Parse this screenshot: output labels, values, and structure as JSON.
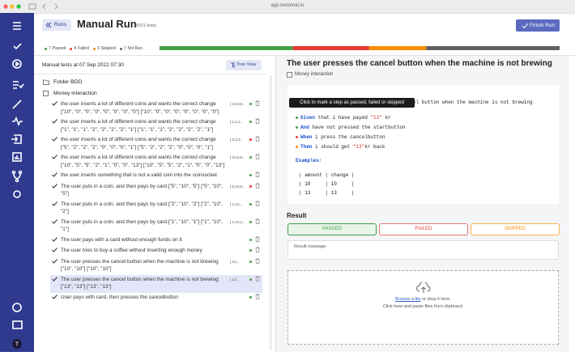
{
  "browser": {
    "url": "app.testomat.io"
  },
  "header": {
    "back_button": "Runs",
    "title": "Manual Run",
    "subtitle": "20/21 tests",
    "finish_button": "Finish Run"
  },
  "stats": [
    {
      "count": 7,
      "label": "Passed",
      "color": "#43a047"
    },
    {
      "count": 4,
      "label": "Failed",
      "color": "#e53935"
    },
    {
      "count": 3,
      "label": "Skipped",
      "color": "#fb8c00"
    },
    {
      "count": 7,
      "label": "Not Run",
      "color": "#616161"
    }
  ],
  "left_panel": {
    "heading": "Manual tests at 07 Sep 2022 07:30",
    "tree_view_button": "Tree View",
    "folder": "Folder BDD",
    "suite": "Money interaction",
    "tests": [
      {
        "title": "the user inserts a lot of different coins and wants the correct change [\"10\", \"0\", \"0\", \"0\", \"0\", \"0\", \"0\", \"0\"] [\"10\", \"0\", \"0\", \"0\", \"0\", \"0\", \"0\", \"0\"]",
        "example": "[ 10,0,0..",
        "status": "#43a047"
      },
      {
        "title": "the user inserts a lot of different coins and wants the correct change [\"1\", \"1\", \"1\", \"2\", \"2\", \"2\", \"2\", \"1\"] [\"1\", \"1\", \"1\", \"2\", \"2\", \"2\", \"2\", \"1\"]",
        "example": "[ 1,1,1..",
        "status": "#43a047"
      },
      {
        "title": "the user inserts a lot of different coins and wants the correct change [\"5\", \"2\", \"2\", \"2\", \"0\", \"0\", \"0\", \"1\"] [\"5\", \"2\", \"2\", \"2\", \"0\", \"0\", \"0\", \"1\"]",
        "example": "[ 5,2,2..",
        "status": "#e53935"
      },
      {
        "title": "the user inserts a lot of different coins and wants the correct change [\"10\", \"5\", \"5\", \"2\", \"1\", \"0\", \"0\", \"13\"] [\"10\", \"5\", \"5\", \"2\", \"1\", \"0\", \"0\", \"13\"]",
        "example": "[ 10,5,5..",
        "status": "#43a047"
      },
      {
        "title": "the user inserts something that is not a valid coin into the coinsocket",
        "status": "#43a047"
      },
      {
        "title": "The user puts in a coin, and then pays by card [\"5\", \"10\", \"5\"] [\"5\", \"10\", \"5\"]",
        "example": "[ 5,10,5..",
        "status": "#e53935"
      },
      {
        "title": "The user puts in a coin, and then pays by card [\"2\", \"10\", \"2\"] [\"2\", \"10\", \"2\"]",
        "example": "[ 2,10,..",
        "status": "#43a047"
      },
      {
        "title": "The user puts in a coin, and then pays by card [\"1\", \"10\", \"1\"] [\"1\", \"10\", \"1\"]",
        "example": "[ 1,10,1..",
        "status": "#43a047"
      },
      {
        "title": "The user pays with a card without enough funds on it",
        "status": "#43a047"
      },
      {
        "title": "The user tries to buy a coffee without inserting enough money",
        "status": "#43a047"
      },
      {
        "title": "The user presses the cancel button when the machine is not brewing [\"10\", \"10\"] [\"10\", \"10\"]",
        "example": "[ 10,..",
        "status": "#43a047"
      },
      {
        "title": "The user presses the cancel button when the machine is not brewing [\"13\", \"13\"] [\"13\", \"13\"]",
        "example": "[ 13,..",
        "status": "#43a047",
        "selected": true
      },
      {
        "title": "User pays with card, then presses the cancelbutton",
        "status": "#43a047"
      }
    ]
  },
  "detail": {
    "title": "The user presses the cancel button when the machine is not brewing",
    "tag": "Money interaction",
    "tooltip": "Click to mark a step as passed, failed or skipped",
    "scenario_visible": "el button when the machine is not brewing",
    "steps": [
      {
        "keyword": "Given",
        "parts": [
          " that i have payed ",
          "\"13\"",
          " kr"
        ],
        "color": "#43a047"
      },
      {
        "keyword": "And",
        "parts": [
          " have not pressed the startbutton"
        ],
        "color": "#43a047"
      },
      {
        "keyword": "When",
        "parts": [
          " i press the cancelbutton"
        ],
        "color": "#e53935"
      },
      {
        "keyword": "Then",
        "parts": [
          " i should get ",
          "\"13\"",
          "kr back"
        ],
        "color": "#fb8c00"
      }
    ],
    "examples_heading": "Examples:",
    "examples_rows": [
      "| amount | change |",
      "| 10     | 10     |",
      "| 13     | 13     |"
    ],
    "result_heading": "Result",
    "passed": "PASSED",
    "failed": "FAILED",
    "skipped": "SKIPPED",
    "message_placeholder": "Result message",
    "browse": "Browse a file",
    "drop": " or drop it here.",
    "paste": "Click here and paste files from clipboard."
  },
  "sidebar": {
    "avatar": "T"
  }
}
